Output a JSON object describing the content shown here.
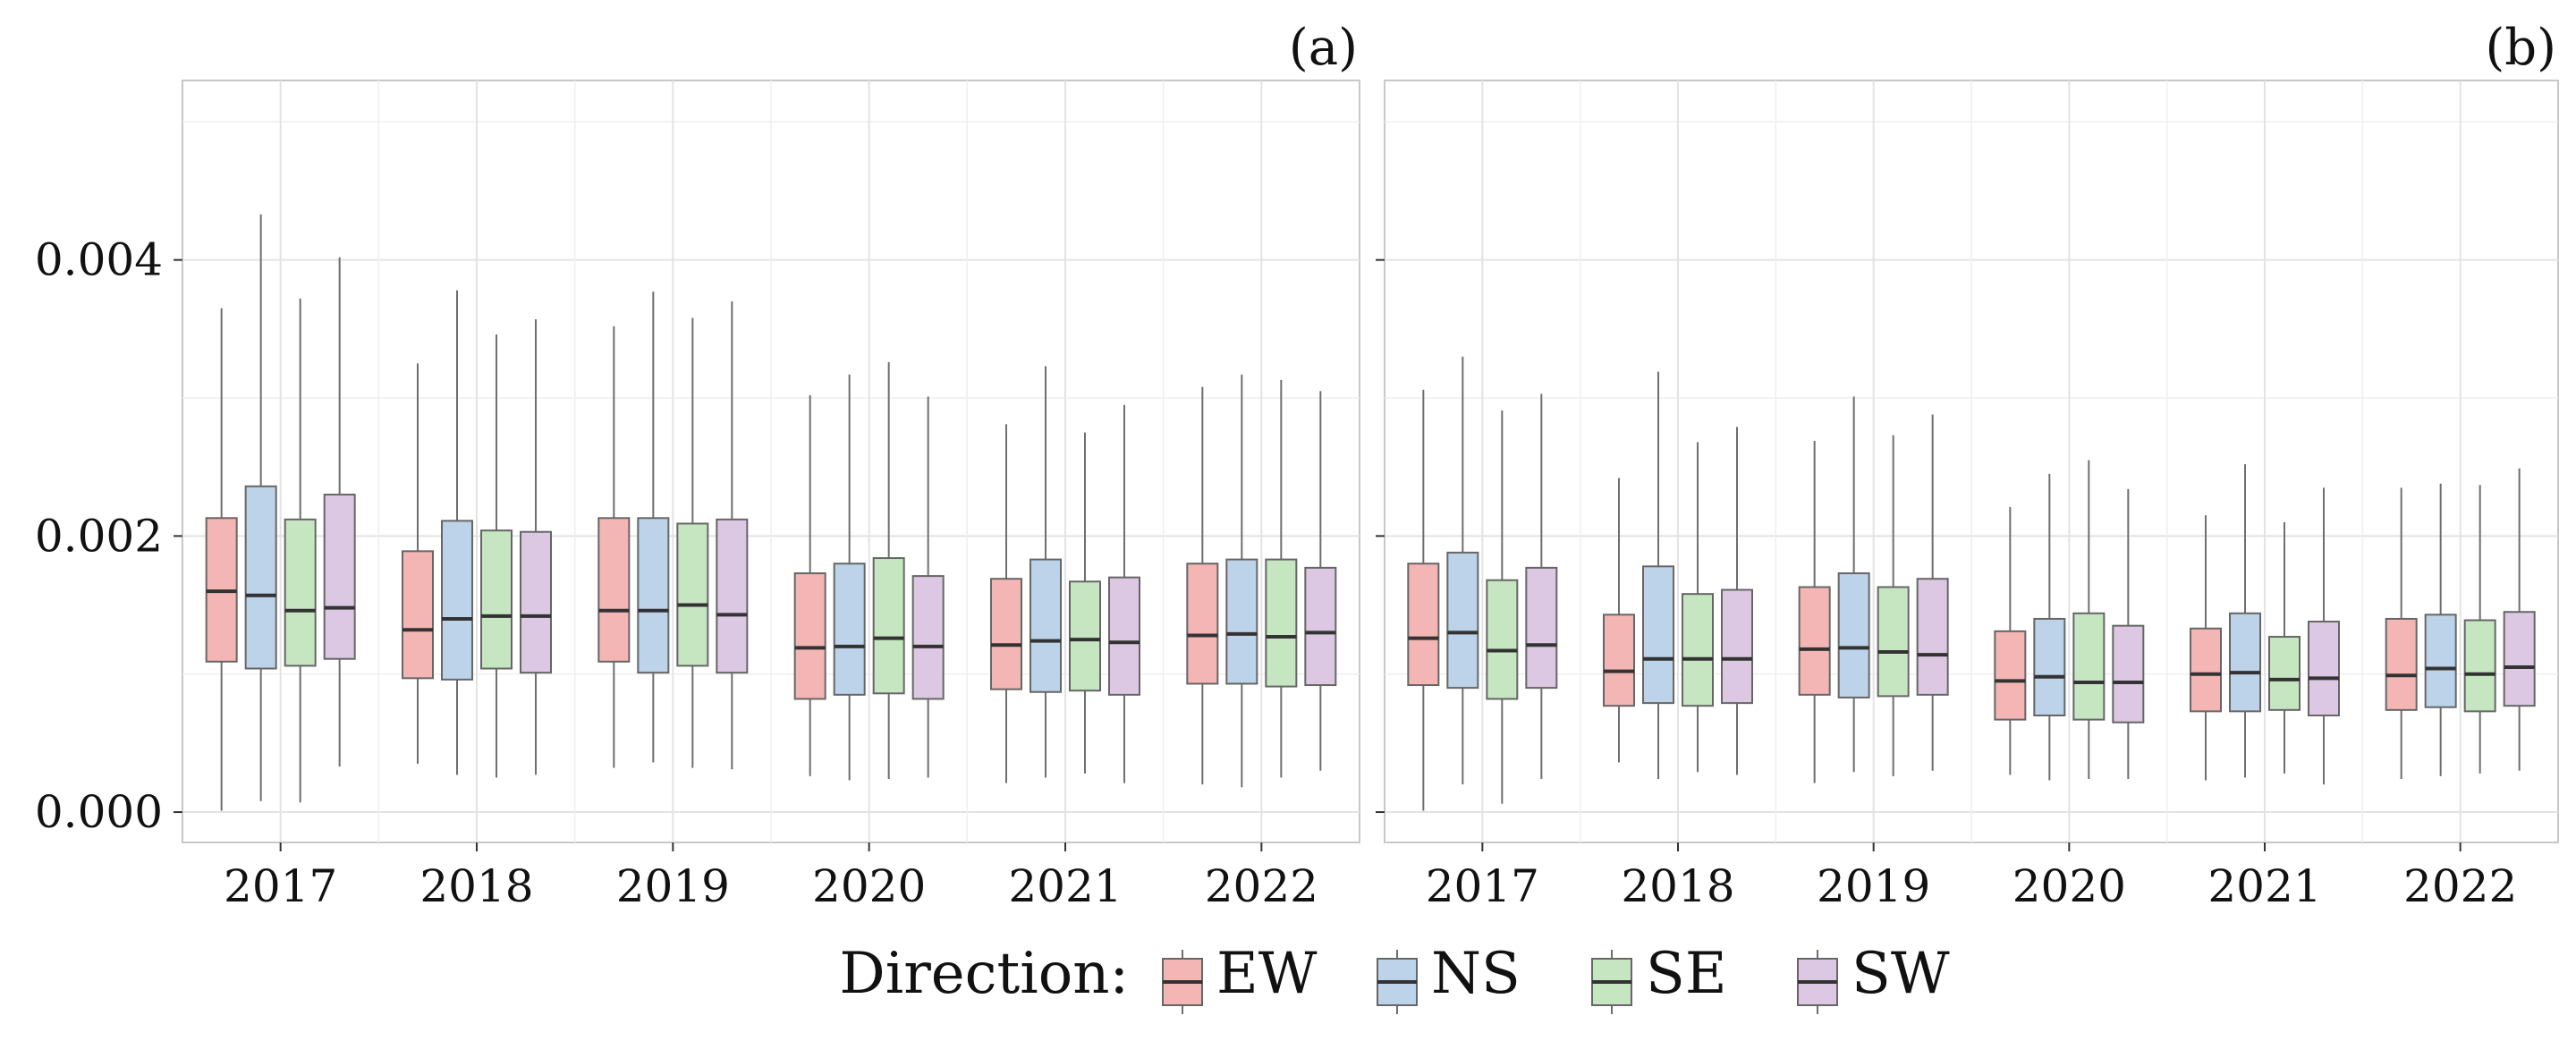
{
  "chart_data": [
    {
      "type": "boxplot",
      "panel_label": "(a)",
      "categories": [
        "2017",
        "2018",
        "2019",
        "2020",
        "2021",
        "2022"
      ],
      "ylim": [
        -0.00022,
        0.0053
      ],
      "yticks": [
        0.0,
        0.002,
        0.004
      ],
      "ytick_labels": [
        "0.000",
        "0.002",
        "0.004"
      ],
      "grid": true,
      "series": [
        {
          "name": "EW",
          "boxes": [
            {
              "min": 1e-05,
              "q1": 0.00109,
              "median": 0.0016,
              "q3": 0.00213,
              "max": 0.00365
            },
            {
              "min": 0.00035,
              "q1": 0.00097,
              "median": 0.00132,
              "q3": 0.00189,
              "max": 0.00325
            },
            {
              "min": 0.00032,
              "q1": 0.00109,
              "median": 0.00146,
              "q3": 0.00213,
              "max": 0.00352
            },
            {
              "min": 0.00026,
              "q1": 0.00082,
              "median": 0.00119,
              "q3": 0.00173,
              "max": 0.00302
            },
            {
              "min": 0.00021,
              "q1": 0.00089,
              "median": 0.00121,
              "q3": 0.00169,
              "max": 0.00281
            },
            {
              "min": 0.0002,
              "q1": 0.00093,
              "median": 0.00128,
              "q3": 0.0018,
              "max": 0.00308
            }
          ]
        },
        {
          "name": "NS",
          "boxes": [
            {
              "min": 8e-05,
              "q1": 0.00104,
              "median": 0.00157,
              "q3": 0.00236,
              "max": 0.00433
            },
            {
              "min": 0.00027,
              "q1": 0.00096,
              "median": 0.0014,
              "q3": 0.00211,
              "max": 0.00378
            },
            {
              "min": 0.00036,
              "q1": 0.00101,
              "median": 0.00146,
              "q3": 0.00213,
              "max": 0.00377
            },
            {
              "min": 0.00023,
              "q1": 0.00085,
              "median": 0.0012,
              "q3": 0.0018,
              "max": 0.00317
            },
            {
              "min": 0.00025,
              "q1": 0.00087,
              "median": 0.00124,
              "q3": 0.00183,
              "max": 0.00323
            },
            {
              "min": 0.00018,
              "q1": 0.00093,
              "median": 0.00129,
              "q3": 0.00183,
              "max": 0.00317
            }
          ]
        },
        {
          "name": "SE",
          "boxes": [
            {
              "min": 7e-05,
              "q1": 0.00106,
              "median": 0.00146,
              "q3": 0.00212,
              "max": 0.00372
            },
            {
              "min": 0.00025,
              "q1": 0.00104,
              "median": 0.00142,
              "q3": 0.00204,
              "max": 0.00346
            },
            {
              "min": 0.00032,
              "q1": 0.00106,
              "median": 0.0015,
              "q3": 0.00209,
              "max": 0.00358
            },
            {
              "min": 0.00024,
              "q1": 0.00086,
              "median": 0.00126,
              "q3": 0.00184,
              "max": 0.00326
            },
            {
              "min": 0.00028,
              "q1": 0.00088,
              "median": 0.00125,
              "q3": 0.00167,
              "max": 0.00275
            },
            {
              "min": 0.00025,
              "q1": 0.00091,
              "median": 0.00127,
              "q3": 0.00183,
              "max": 0.00313
            }
          ]
        },
        {
          "name": "SW",
          "boxes": [
            {
              "min": 0.00033,
              "q1": 0.00111,
              "median": 0.00148,
              "q3": 0.0023,
              "max": 0.00402
            },
            {
              "min": 0.00027,
              "q1": 0.00101,
              "median": 0.00142,
              "q3": 0.00203,
              "max": 0.00357
            },
            {
              "min": 0.00031,
              "q1": 0.00101,
              "median": 0.00143,
              "q3": 0.00212,
              "max": 0.0037
            },
            {
              "min": 0.00025,
              "q1": 0.00082,
              "median": 0.0012,
              "q3": 0.00171,
              "max": 0.00301
            },
            {
              "min": 0.00021,
              "q1": 0.00085,
              "median": 0.00123,
              "q3": 0.0017,
              "max": 0.00295
            },
            {
              "min": 0.0003,
              "q1": 0.00092,
              "median": 0.0013,
              "q3": 0.00177,
              "max": 0.00305
            }
          ]
        }
      ]
    },
    {
      "type": "boxplot",
      "panel_label": "(b)",
      "categories": [
        "2017",
        "2018",
        "2019",
        "2020",
        "2021",
        "2022"
      ],
      "ylim": [
        -0.00022,
        0.0053
      ],
      "yticks": [
        0.0,
        0.002,
        0.004
      ],
      "ytick_labels": [
        "",
        "",
        ""
      ],
      "grid": true,
      "series": [
        {
          "name": "EW",
          "boxes": [
            {
              "min": 1e-05,
              "q1": 0.00092,
              "median": 0.00126,
              "q3": 0.0018,
              "max": 0.00306
            },
            {
              "min": 0.00036,
              "q1": 0.00077,
              "median": 0.00102,
              "q3": 0.00143,
              "max": 0.00242
            },
            {
              "min": 0.00021,
              "q1": 0.00085,
              "median": 0.00118,
              "q3": 0.00163,
              "max": 0.00269
            },
            {
              "min": 0.00027,
              "q1": 0.00067,
              "median": 0.00095,
              "q3": 0.00131,
              "max": 0.00221
            },
            {
              "min": 0.00023,
              "q1": 0.00073,
              "median": 0.001,
              "q3": 0.00133,
              "max": 0.00215
            },
            {
              "min": 0.00024,
              "q1": 0.00074,
              "median": 0.00099,
              "q3": 0.0014,
              "max": 0.00235
            }
          ]
        },
        {
          "name": "NS",
          "boxes": [
            {
              "min": 0.0002,
              "q1": 0.0009,
              "median": 0.0013,
              "q3": 0.00188,
              "max": 0.0033
            },
            {
              "min": 0.00024,
              "q1": 0.00079,
              "median": 0.00111,
              "q3": 0.00178,
              "max": 0.00319
            },
            {
              "min": 0.00029,
              "q1": 0.00083,
              "median": 0.00119,
              "q3": 0.00173,
              "max": 0.00301
            },
            {
              "min": 0.00023,
              "q1": 0.0007,
              "median": 0.00098,
              "q3": 0.0014,
              "max": 0.00245
            },
            {
              "min": 0.00025,
              "q1": 0.00073,
              "median": 0.00101,
              "q3": 0.00144,
              "max": 0.00252
            },
            {
              "min": 0.00026,
              "q1": 0.00076,
              "median": 0.00104,
              "q3": 0.00143,
              "max": 0.00238
            }
          ]
        },
        {
          "name": "SE",
          "boxes": [
            {
              "min": 6e-05,
              "q1": 0.00082,
              "median": 0.00117,
              "q3": 0.00168,
              "max": 0.00291
            },
            {
              "min": 0.00029,
              "q1": 0.00077,
              "median": 0.00111,
              "q3": 0.00158,
              "max": 0.00268
            },
            {
              "min": 0.00026,
              "q1": 0.00084,
              "median": 0.00116,
              "q3": 0.00163,
              "max": 0.00273
            },
            {
              "min": 0.00024,
              "q1": 0.00067,
              "median": 0.00094,
              "q3": 0.00144,
              "max": 0.00255
            },
            {
              "min": 0.00028,
              "q1": 0.00074,
              "median": 0.00096,
              "q3": 0.00127,
              "max": 0.0021
            },
            {
              "min": 0.00028,
              "q1": 0.00073,
              "median": 0.001,
              "q3": 0.00139,
              "max": 0.00237
            }
          ]
        },
        {
          "name": "SW",
          "boxes": [
            {
              "min": 0.00024,
              "q1": 0.0009,
              "median": 0.00121,
              "q3": 0.00177,
              "max": 0.00303
            },
            {
              "min": 0.00027,
              "q1": 0.00079,
              "median": 0.00111,
              "q3": 0.00161,
              "max": 0.00279
            },
            {
              "min": 0.0003,
              "q1": 0.00085,
              "median": 0.00114,
              "q3": 0.00169,
              "max": 0.00288
            },
            {
              "min": 0.00024,
              "q1": 0.00065,
              "median": 0.00094,
              "q3": 0.00135,
              "max": 0.00234
            },
            {
              "min": 0.0002,
              "q1": 0.0007,
              "median": 0.00097,
              "q3": 0.00138,
              "max": 0.00235
            },
            {
              "min": 0.0003,
              "q1": 0.00077,
              "median": 0.00105,
              "q3": 0.00145,
              "max": 0.00249
            }
          ]
        }
      ]
    }
  ],
  "legend": {
    "title": "Direction:",
    "position": "bottom-center",
    "items": [
      {
        "label": "EW",
        "fill": "#f4b6b4",
        "stroke": "#c98684"
      },
      {
        "label": "NS",
        "fill": "#bcd3e9",
        "stroke": "#7d9bb8"
      },
      {
        "label": "SE",
        "fill": "#c6e6c1",
        "stroke": "#80a87b"
      },
      {
        "label": "SW",
        "fill": "#dcc8e3",
        "stroke": "#a287ab"
      }
    ]
  }
}
